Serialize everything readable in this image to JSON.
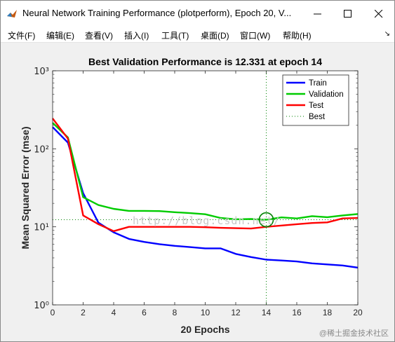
{
  "window": {
    "title": "Neural Network Training Performance (plotperform), Epoch 20, V..."
  },
  "menu": {
    "items": [
      "文件(F)",
      "编辑(E)",
      "查看(V)",
      "插入(I)",
      "工具(T)",
      "桌面(D)",
      "窗口(W)",
      "帮助(H)"
    ]
  },
  "watermark": "http://blog.csdn.net/",
  "footer_watermark": "@稀土掘金技术社区",
  "chart_data": {
    "type": "line",
    "title": "Best Validation Performance is 12.331 at epoch 14",
    "xlabel": "20 Epochs",
    "ylabel": "Mean Squared Error  (mse)",
    "xlim": [
      0,
      20
    ],
    "ylim": [
      1,
      1000
    ],
    "yscale": "log",
    "x_ticks": [
      0,
      2,
      4,
      6,
      8,
      10,
      12,
      14,
      16,
      18,
      20
    ],
    "y_ticks": [
      1,
      10,
      100,
      1000
    ],
    "y_tick_labels": [
      "10⁰",
      "10¹",
      "10²",
      "10³"
    ],
    "grid": false,
    "legend_position": "top-right",
    "x": [
      0,
      1,
      2,
      3,
      4,
      5,
      6,
      7,
      8,
      9,
      10,
      11,
      12,
      13,
      14,
      15,
      16,
      17,
      18,
      19,
      20
    ],
    "series": [
      {
        "name": "Train",
        "color": "#0000ff",
        "values": [
          190,
          120,
          27,
          11.3,
          8.5,
          7.0,
          6.4,
          6.0,
          5.7,
          5.5,
          5.3,
          5.3,
          4.5,
          4.1,
          3.8,
          3.7,
          3.6,
          3.4,
          3.3,
          3.2,
          3.0
        ]
      },
      {
        "name": "Validation",
        "color": "#00cc00",
        "values": [
          215,
          140,
          24,
          19,
          17,
          16,
          16,
          15.9,
          15.4,
          15,
          14.5,
          13,
          12.5,
          12.6,
          12.331,
          13.2,
          12.8,
          13.7,
          13.3,
          14,
          14.6
        ]
      },
      {
        "name": "Test",
        "color": "#ff0000",
        "values": [
          245,
          135,
          14,
          10.8,
          8.8,
          10,
          10,
          10,
          10,
          10,
          9.9,
          9.7,
          9.6,
          9.5,
          10,
          10.4,
          10.8,
          11.2,
          11.4,
          12.8,
          13
        ]
      }
    ],
    "best": {
      "label": "Best",
      "epoch": 14,
      "value": 12.331,
      "color": "#008000"
    }
  }
}
